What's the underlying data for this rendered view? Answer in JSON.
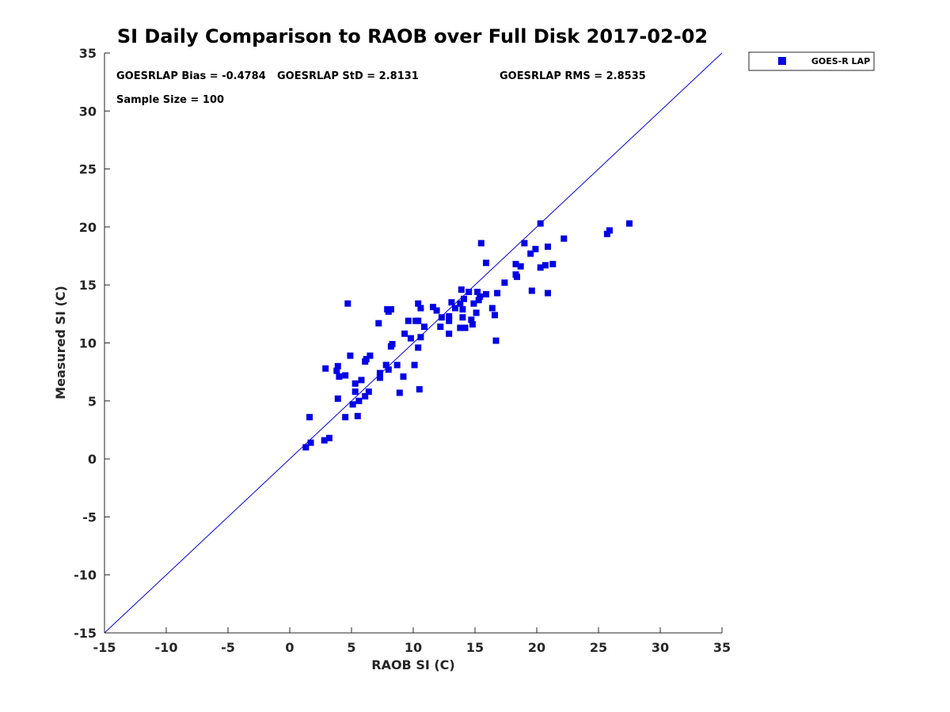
{
  "chart_data": {
    "type": "scatter",
    "title": "SI Daily Comparison to RAOB over Full Disk 2017-02-02",
    "xlabel": "RAOB SI (C)",
    "ylabel": "Measured SI (C)",
    "xlim": [
      -15,
      35
    ],
    "ylim": [
      -15,
      35
    ],
    "xticks": [
      -15,
      -10,
      -5,
      0,
      5,
      10,
      15,
      20,
      25,
      30,
      35
    ],
    "yticks": [
      -15,
      -10,
      -5,
      0,
      5,
      10,
      15,
      20,
      25,
      30,
      35
    ],
    "xtick_labels": [
      "-15",
      "-10",
      "-5",
      "0",
      "5",
      "10",
      "15",
      "20",
      "25",
      "30",
      "35"
    ],
    "ytick_labels": [
      "-15",
      "-10",
      "-5",
      "0",
      "5",
      "10",
      "15",
      "20",
      "25",
      "30",
      "35"
    ],
    "grid": false,
    "legend": {
      "position": "outside top-right",
      "entries": [
        "GOES-R LAP"
      ]
    },
    "reference_line": {
      "type": "one-to-one",
      "from": [
        -15,
        -15
      ],
      "to": [
        35,
        35
      ]
    },
    "annotations": {
      "bias": "GOESRLAP Bias = -0.4784",
      "std": "GOESRLAP StD = 2.8131",
      "rms": "GOESRLAP RMS = 2.8535",
      "sample_size": "Sample Size = 100"
    },
    "colors": {
      "marker": "#0000e6",
      "line": "#0000e6",
      "axis": "#262626"
    },
    "series": [
      {
        "name": "GOES-R LAP",
        "marker": "square",
        "points": [
          [
            1.3,
            1.0
          ],
          [
            1.6,
            3.6
          ],
          [
            1.7,
            1.4
          ],
          [
            2.8,
            1.6
          ],
          [
            2.9,
            7.8
          ],
          [
            3.2,
            1.8
          ],
          [
            3.8,
            7.6
          ],
          [
            3.9,
            8.0
          ],
          [
            3.9,
            5.2
          ],
          [
            4.0,
            7.1
          ],
          [
            4.5,
            7.2
          ],
          [
            4.5,
            3.6
          ],
          [
            4.7,
            13.4
          ],
          [
            4.9,
            8.9
          ],
          [
            5.1,
            4.7
          ],
          [
            5.3,
            6.5
          ],
          [
            5.3,
            5.8
          ],
          [
            5.5,
            3.7
          ],
          [
            5.6,
            5.0
          ],
          [
            5.8,
            6.8
          ],
          [
            6.1,
            8.4
          ],
          [
            6.1,
            5.4
          ],
          [
            6.2,
            8.6
          ],
          [
            6.4,
            5.8
          ],
          [
            6.5,
            8.9
          ],
          [
            7.2,
            11.7
          ],
          [
            7.3,
            7.0
          ],
          [
            7.3,
            7.4
          ],
          [
            7.8,
            8.1
          ],
          [
            7.9,
            12.9
          ],
          [
            8.0,
            7.7
          ],
          [
            8.0,
            12.7
          ],
          [
            8.2,
            12.9
          ],
          [
            8.2,
            9.7
          ],
          [
            8.3,
            9.9
          ],
          [
            8.7,
            8.1
          ],
          [
            8.9,
            5.7
          ],
          [
            9.2,
            7.1
          ],
          [
            9.3,
            10.8
          ],
          [
            9.6,
            11.9
          ],
          [
            9.8,
            10.4
          ],
          [
            10.1,
            8.1
          ],
          [
            10.2,
            11.9
          ],
          [
            10.4,
            13.4
          ],
          [
            10.4,
            9.6
          ],
          [
            10.4,
            11.9
          ],
          [
            10.5,
            6.0
          ],
          [
            10.6,
            13.0
          ],
          [
            10.6,
            10.5
          ],
          [
            10.9,
            11.4
          ],
          [
            11.6,
            13.1
          ],
          [
            11.9,
            12.8
          ],
          [
            12.2,
            11.4
          ],
          [
            12.3,
            12.2
          ],
          [
            12.9,
            12.3
          ],
          [
            12.9,
            11.9
          ],
          [
            12.9,
            10.8
          ],
          [
            13.1,
            13.5
          ],
          [
            13.4,
            13.0
          ],
          [
            13.8,
            11.3
          ],
          [
            13.8,
            13.4
          ],
          [
            13.9,
            14.6
          ],
          [
            14.0,
            12.9
          ],
          [
            14.0,
            12.2
          ],
          [
            14.1,
            13.8
          ],
          [
            14.2,
            11.3
          ],
          [
            14.5,
            14.4
          ],
          [
            14.7,
            12.0
          ],
          [
            14.8,
            11.6
          ],
          [
            14.9,
            13.4
          ],
          [
            15.1,
            12.6
          ],
          [
            15.2,
            14.4
          ],
          [
            15.3,
            13.7
          ],
          [
            15.4,
            14.0
          ],
          [
            15.5,
            18.6
          ],
          [
            15.9,
            16.9
          ],
          [
            15.9,
            14.2
          ],
          [
            16.4,
            13.0
          ],
          [
            16.6,
            12.4
          ],
          [
            16.7,
            10.2
          ],
          [
            16.8,
            14.3
          ],
          [
            17.4,
            15.2
          ],
          [
            18.3,
            16.8
          ],
          [
            18.3,
            15.9
          ],
          [
            18.4,
            15.7
          ],
          [
            18.7,
            16.6
          ],
          [
            19.0,
            18.6
          ],
          [
            19.5,
            17.7
          ],
          [
            19.6,
            14.5
          ],
          [
            19.9,
            18.1
          ],
          [
            20.3,
            20.3
          ],
          [
            20.3,
            16.5
          ],
          [
            20.7,
            16.7
          ],
          [
            20.9,
            18.3
          ],
          [
            20.9,
            14.3
          ],
          [
            21.3,
            16.8
          ],
          [
            22.2,
            19.0
          ],
          [
            25.7,
            19.4
          ],
          [
            25.9,
            19.7
          ],
          [
            27.5,
            20.3
          ]
        ]
      }
    ]
  }
}
